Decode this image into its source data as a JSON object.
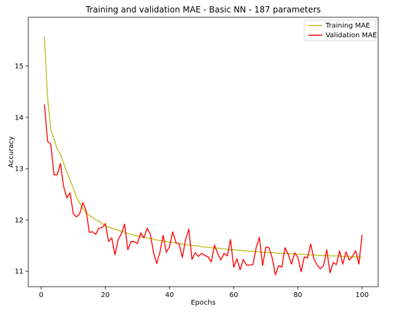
{
  "chart_data": {
    "type": "line",
    "title": "Training and validation MAE - Basic NN - 187 parameters",
    "xlabel": "Epochs",
    "ylabel": "Accuracy",
    "xlim": [
      -4,
      105
    ],
    "ylim": [
      10.7,
      15.95
    ],
    "xticks": [
      0,
      20,
      40,
      60,
      80,
      100
    ],
    "yticks": [
      11,
      12,
      13,
      14,
      15
    ],
    "grid": false,
    "legend_position": "top-right",
    "x": [
      1,
      2,
      3,
      4,
      5,
      6,
      7,
      8,
      9,
      10,
      11,
      12,
      13,
      14,
      15,
      16,
      17,
      18,
      19,
      20,
      21,
      22,
      23,
      24,
      25,
      26,
      27,
      28,
      29,
      30,
      31,
      32,
      33,
      34,
      35,
      36,
      37,
      38,
      39,
      40,
      41,
      42,
      43,
      44,
      45,
      46,
      47,
      48,
      49,
      50,
      51,
      52,
      53,
      54,
      55,
      56,
      57,
      58,
      59,
      60,
      61,
      62,
      63,
      64,
      65,
      66,
      67,
      68,
      69,
      70,
      71,
      72,
      73,
      74,
      75,
      76,
      77,
      78,
      79,
      80,
      81,
      82,
      83,
      84,
      85,
      86,
      87,
      88,
      89,
      90,
      91,
      92,
      93,
      94,
      95,
      96,
      97,
      98,
      99,
      100
    ],
    "series": [
      {
        "name": "Training MAE",
        "color": "#bcbd22",
        "values": [
          15.57,
          14.38,
          13.76,
          13.58,
          13.38,
          13.28,
          13.1,
          12.94,
          12.78,
          12.62,
          12.45,
          12.33,
          12.22,
          12.14,
          12.09,
          12.05,
          12.0,
          11.98,
          11.93,
          11.89,
          11.86,
          11.84,
          11.82,
          11.8,
          11.78,
          11.76,
          11.74,
          11.72,
          11.7,
          11.69,
          11.68,
          11.66,
          11.65,
          11.64,
          11.63,
          11.61,
          11.6,
          11.59,
          11.58,
          11.57,
          11.56,
          11.55,
          11.54,
          11.53,
          11.52,
          11.51,
          11.5,
          11.5,
          11.49,
          11.48,
          11.47,
          11.47,
          11.46,
          11.45,
          11.45,
          11.44,
          11.44,
          11.43,
          11.42,
          11.42,
          11.41,
          11.41,
          11.4,
          11.4,
          11.39,
          11.39,
          11.38,
          11.38,
          11.37,
          11.37,
          11.36,
          11.36,
          11.36,
          11.35,
          11.35,
          11.35,
          11.34,
          11.34,
          11.34,
          11.33,
          11.33,
          11.33,
          11.32,
          11.32,
          11.32,
          11.31,
          11.31,
          11.31,
          11.31,
          11.3,
          11.3,
          11.3,
          11.3,
          11.29,
          11.29,
          11.29,
          11.28,
          11.28,
          11.28,
          11.27
        ]
      },
      {
        "name": "Validation MAE",
        "color": "#ff0000",
        "values": [
          14.25,
          13.53,
          13.48,
          12.88,
          12.88,
          13.1,
          12.65,
          12.43,
          12.53,
          12.12,
          12.06,
          12.12,
          12.34,
          12.18,
          11.76,
          11.77,
          11.72,
          11.84,
          11.85,
          11.93,
          11.58,
          11.65,
          11.32,
          11.62,
          11.73,
          11.92,
          11.42,
          11.58,
          11.58,
          11.54,
          11.75,
          11.65,
          11.84,
          11.73,
          11.37,
          11.15,
          11.37,
          11.7,
          11.37,
          11.48,
          11.77,
          11.56,
          11.53,
          11.27,
          11.62,
          11.82,
          11.23,
          11.36,
          11.29,
          11.35,
          11.31,
          11.28,
          11.18,
          11.51,
          11.35,
          11.22,
          11.35,
          11.3,
          11.62,
          11.08,
          11.24,
          11.03,
          11.23,
          11.12,
          11.12,
          11.13,
          11.46,
          11.66,
          11.11,
          11.47,
          11.46,
          11.26,
          10.93,
          11.11,
          11.08,
          11.46,
          11.33,
          11.14,
          11.36,
          11.27,
          10.99,
          11.28,
          11.26,
          11.53,
          11.24,
          11.12,
          11.05,
          11.11,
          11.42,
          10.97,
          11.17,
          11.13,
          11.4,
          11.14,
          11.38,
          11.22,
          11.29,
          11.4,
          11.14,
          11.71
        ]
      }
    ]
  }
}
